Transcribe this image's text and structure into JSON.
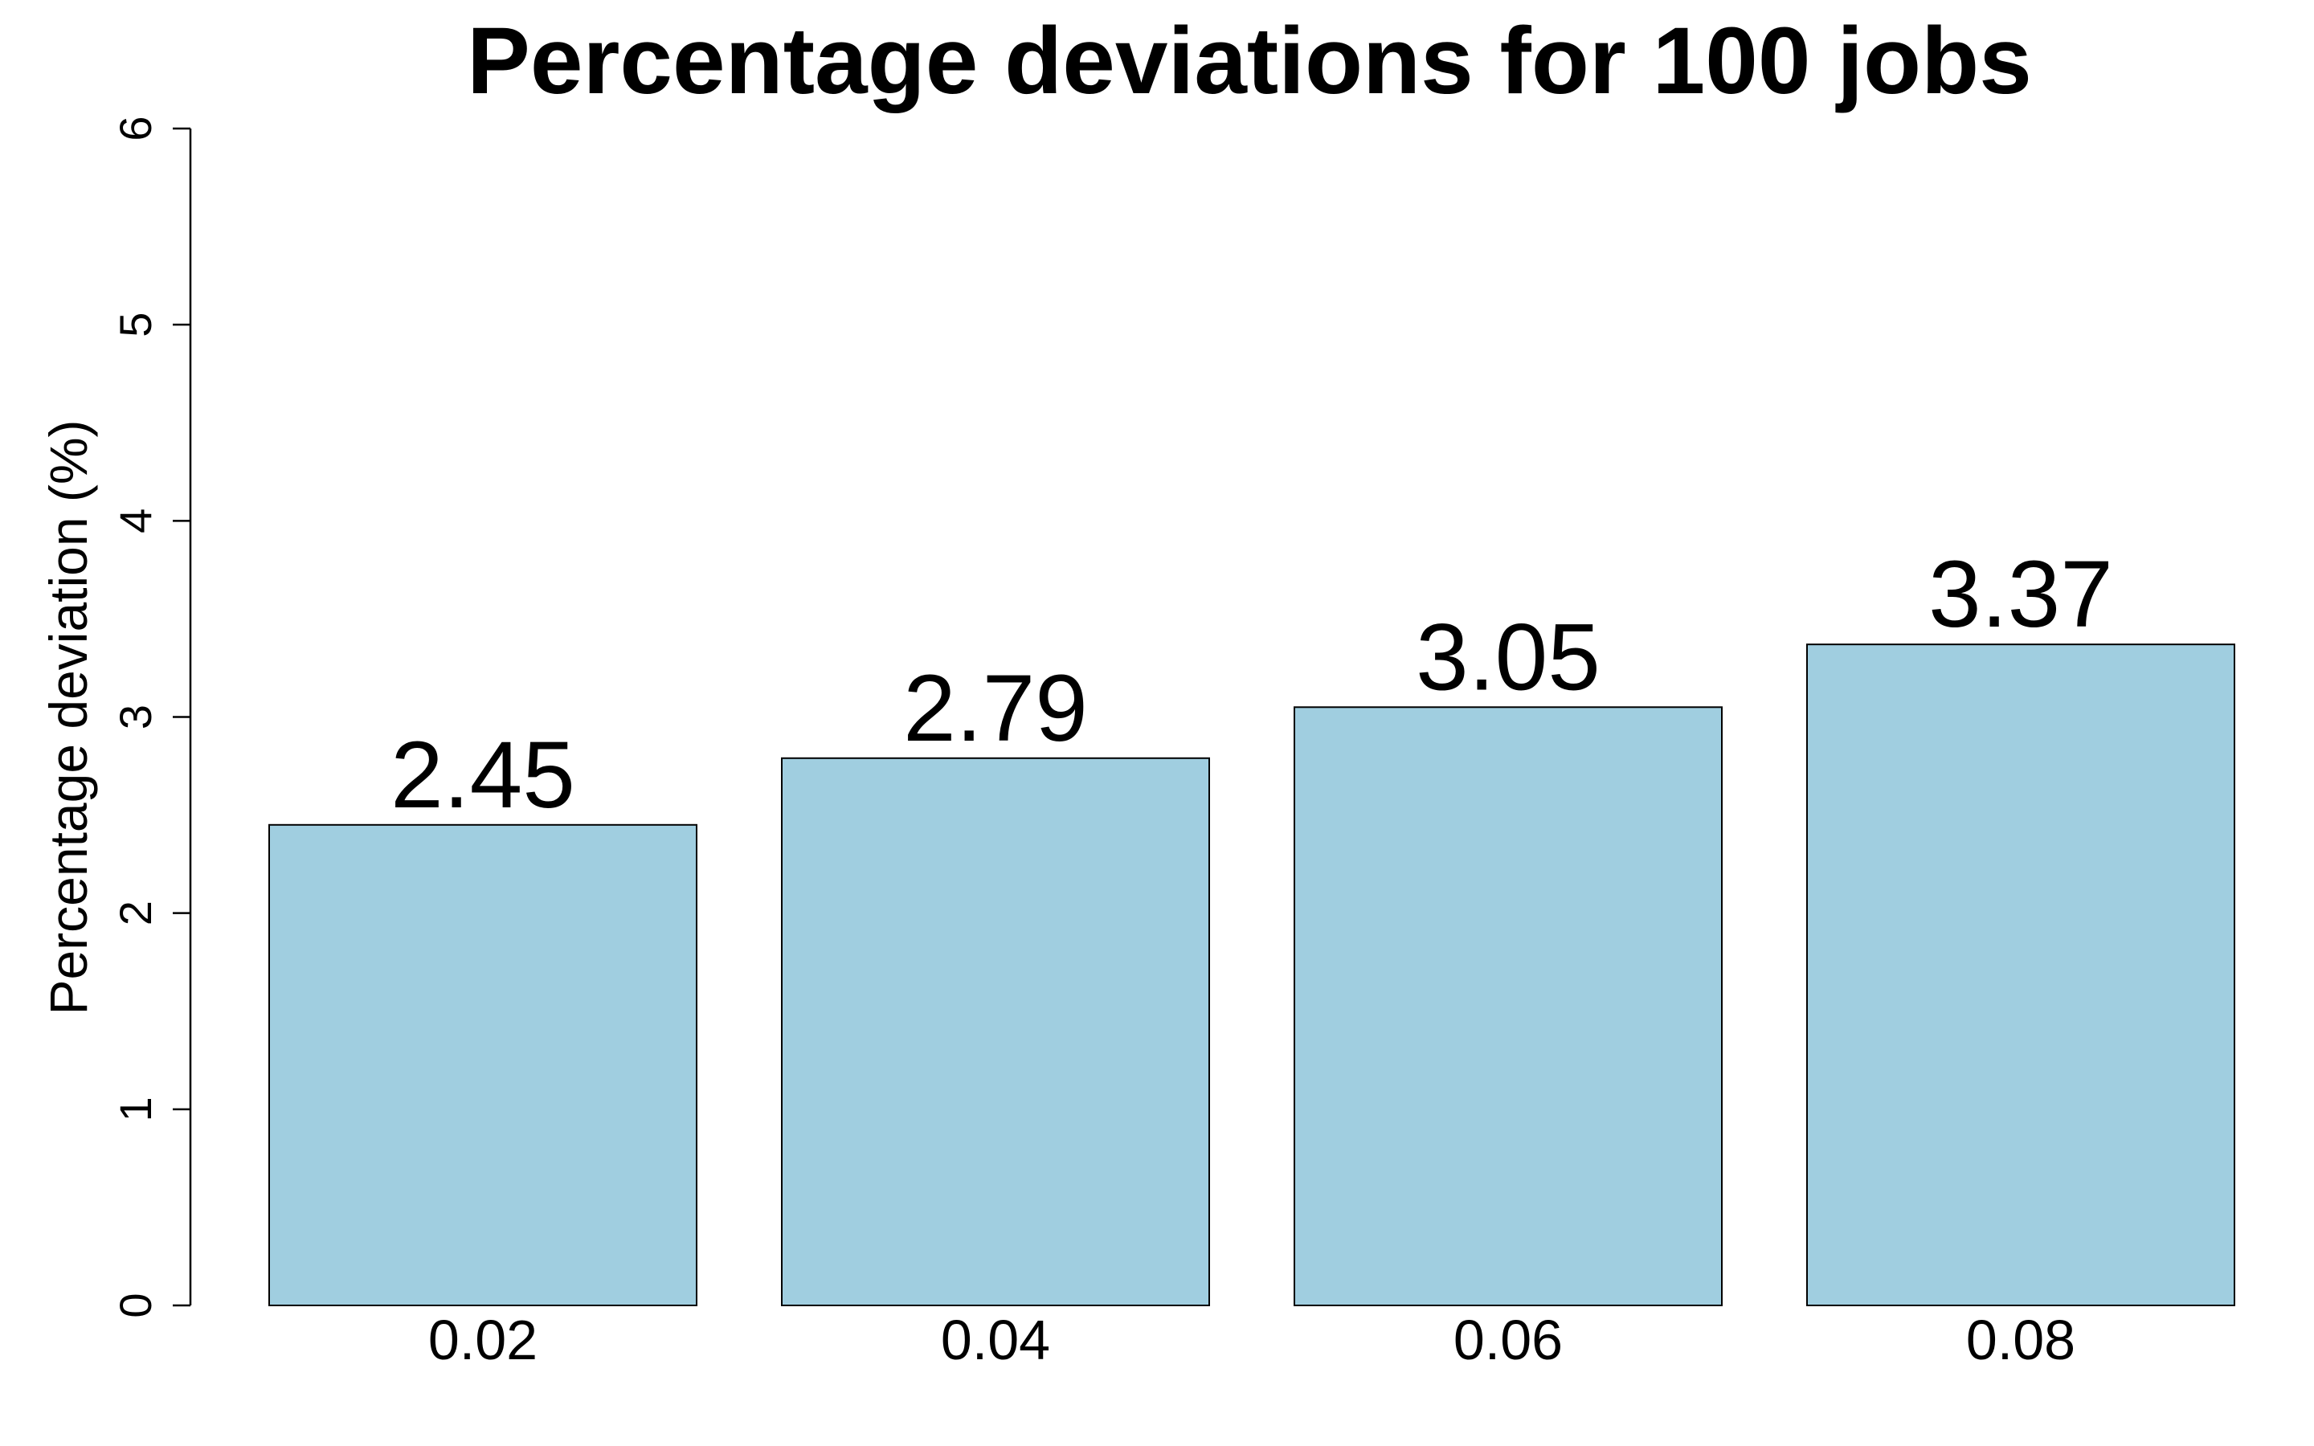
{
  "chart_data": {
    "type": "bar",
    "title": "Percentage deviations for 100 jobs",
    "xlabel": "",
    "ylabel": "Percentage deviation (%)",
    "categories": [
      "0.02",
      "0.04",
      "0.06",
      "0.08"
    ],
    "values": [
      2.45,
      2.79,
      3.05,
      3.37
    ],
    "data_labels": [
      "2.45",
      "2.79",
      "3.05",
      "3.37"
    ],
    "ylim": [
      0,
      6
    ],
    "y_ticks": [
      0,
      1,
      2,
      3,
      4,
      5,
      6
    ],
    "y_tick_labels": [
      "0",
      "1",
      "2",
      "3",
      "4",
      "5",
      "6"
    ],
    "grid": false,
    "legend": "none",
    "colors": {
      "bar_fill": "#a0cee0",
      "bar_stroke": "#000000",
      "axis": "#000000",
      "text": "#000000"
    }
  }
}
